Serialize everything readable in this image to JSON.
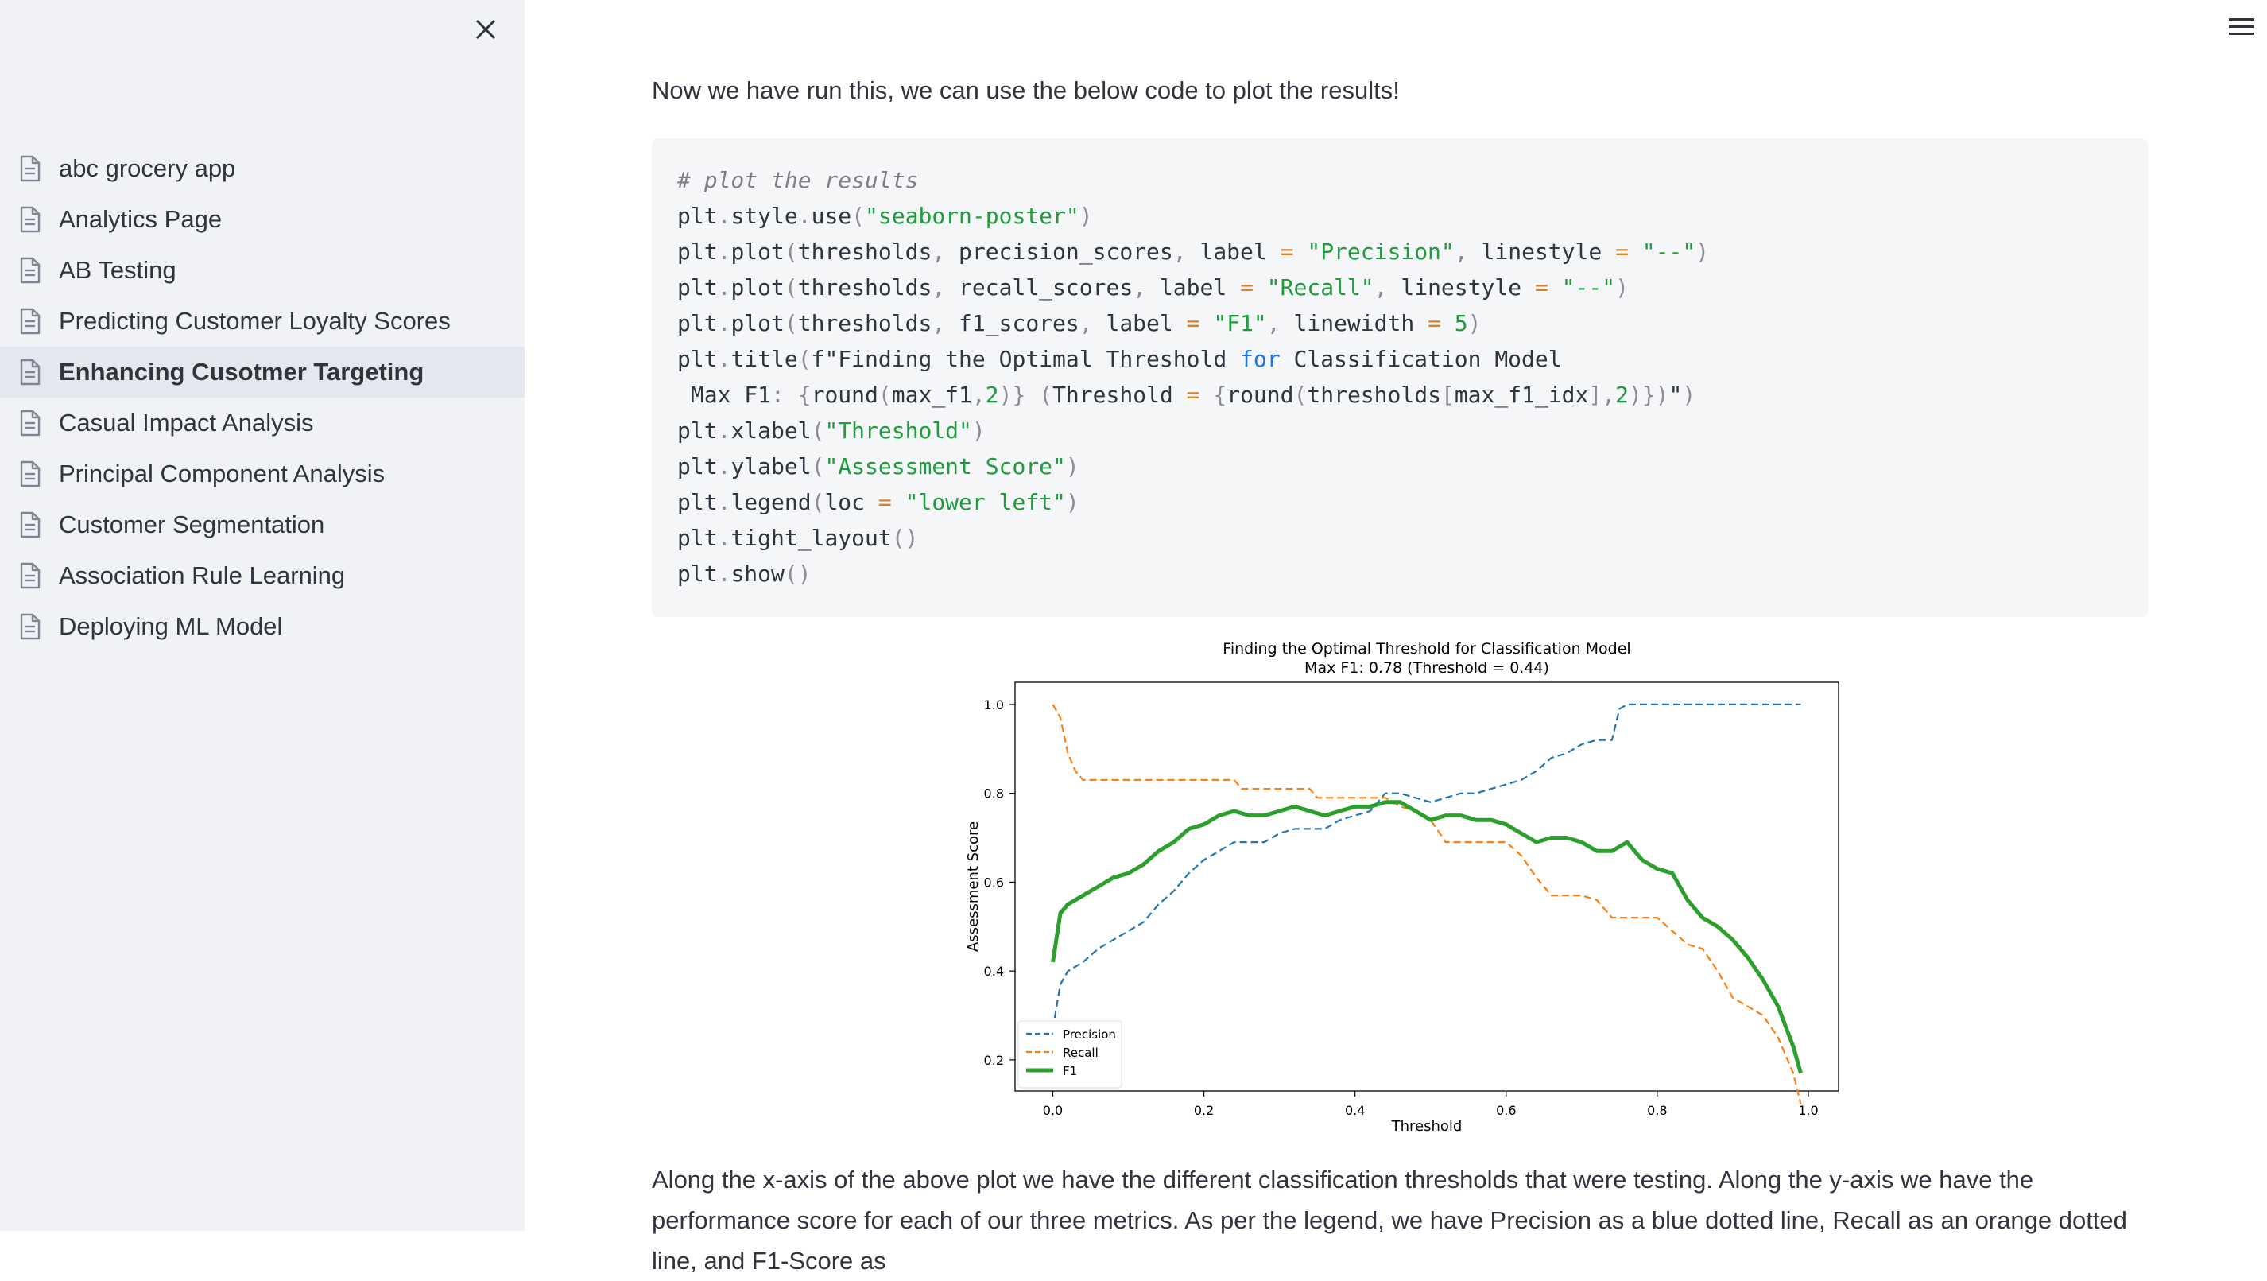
{
  "sidebar": {
    "close_icon": "close-icon",
    "items": [
      {
        "label": "abc grocery app",
        "icon": "document-icon"
      },
      {
        "label": "Analytics Page",
        "icon": "document-icon"
      },
      {
        "label": "AB Testing",
        "icon": "document-icon"
      },
      {
        "label": "Predicting Customer Loyalty Scores",
        "icon": "document-icon"
      },
      {
        "label": "Enhancing Cusotmer Targeting",
        "icon": "document-icon",
        "active": true
      },
      {
        "label": "Casual Impact Analysis",
        "icon": "document-icon"
      },
      {
        "label": "Principal Component Analysis",
        "icon": "document-icon"
      },
      {
        "label": "Customer Segmentation",
        "icon": "document-icon"
      },
      {
        "label": "Association Rule Learning",
        "icon": "document-icon"
      },
      {
        "label": "Deploying ML Model",
        "icon": "document-icon"
      }
    ]
  },
  "header": {
    "menu_icon": "hamburger-menu-icon"
  },
  "main": {
    "intro": "Now we have run this, we can use the below code to plot the results!",
    "code_lines": [
      [
        [
          "cm",
          "# plot the results"
        ]
      ],
      [
        [
          "t",
          "plt"
        ],
        [
          "p",
          "."
        ],
        [
          "t",
          "style"
        ],
        [
          "p",
          "."
        ],
        [
          "t",
          "use"
        ],
        [
          "p",
          "("
        ],
        [
          "str",
          "\"seaborn-poster\""
        ],
        [
          "p",
          ")"
        ]
      ],
      [
        [
          "t",
          "plt"
        ],
        [
          "p",
          "."
        ],
        [
          "t",
          "plot"
        ],
        [
          "p",
          "("
        ],
        [
          "t",
          "thresholds"
        ],
        [
          "p",
          ","
        ],
        [
          "t",
          " precision_scores"
        ],
        [
          "p",
          ","
        ],
        [
          "t",
          " label "
        ],
        [
          "op",
          "="
        ],
        [
          "t",
          " "
        ],
        [
          "str",
          "\"Precision\""
        ],
        [
          "p",
          ","
        ],
        [
          "t",
          " linestyle "
        ],
        [
          "op",
          "="
        ],
        [
          "t",
          " "
        ],
        [
          "str",
          "\"--\""
        ],
        [
          "p",
          ")"
        ]
      ],
      [
        [
          "t",
          "plt"
        ],
        [
          "p",
          "."
        ],
        [
          "t",
          "plot"
        ],
        [
          "p",
          "("
        ],
        [
          "t",
          "thresholds"
        ],
        [
          "p",
          ","
        ],
        [
          "t",
          " recall_scores"
        ],
        [
          "p",
          ","
        ],
        [
          "t",
          " label "
        ],
        [
          "op",
          "="
        ],
        [
          "t",
          " "
        ],
        [
          "str",
          "\"Recall\""
        ],
        [
          "p",
          ","
        ],
        [
          "t",
          " linestyle "
        ],
        [
          "op",
          "="
        ],
        [
          "t",
          " "
        ],
        [
          "str",
          "\"--\""
        ],
        [
          "p",
          ")"
        ]
      ],
      [
        [
          "t",
          "plt"
        ],
        [
          "p",
          "."
        ],
        [
          "t",
          "plot"
        ],
        [
          "p",
          "("
        ],
        [
          "t",
          "thresholds"
        ],
        [
          "p",
          ","
        ],
        [
          "t",
          " f1_scores"
        ],
        [
          "p",
          ","
        ],
        [
          "t",
          " label "
        ],
        [
          "op",
          "="
        ],
        [
          "t",
          " "
        ],
        [
          "str",
          "\"F1\""
        ],
        [
          "p",
          ","
        ],
        [
          "t",
          " linewidth "
        ],
        [
          "op",
          "="
        ],
        [
          "t",
          " "
        ],
        [
          "num",
          "5"
        ],
        [
          "p",
          ")"
        ]
      ],
      [
        [
          "t",
          "plt"
        ],
        [
          "p",
          "."
        ],
        [
          "t",
          "title"
        ],
        [
          "p",
          "("
        ],
        [
          "t",
          "f\"Finding the Optimal Threshold "
        ],
        [
          "kw",
          "for"
        ],
        [
          "t",
          " Classification Model"
        ]
      ],
      [
        [
          "t",
          " Max F1"
        ],
        [
          "p",
          ":"
        ],
        [
          "t",
          " "
        ],
        [
          "p",
          "{"
        ],
        [
          "t",
          "round"
        ],
        [
          "p",
          "("
        ],
        [
          "t",
          "max_f1"
        ],
        [
          "p",
          ","
        ],
        [
          "num",
          "2"
        ],
        [
          "p",
          ")}"
        ],
        [
          "t",
          " "
        ],
        [
          "p",
          "("
        ],
        [
          "t",
          "Threshold "
        ],
        [
          "op",
          "="
        ],
        [
          "t",
          " "
        ],
        [
          "p",
          "{"
        ],
        [
          "t",
          "round"
        ],
        [
          "p",
          "("
        ],
        [
          "t",
          "thresholds"
        ],
        [
          "p",
          "["
        ],
        [
          "t",
          "max_f1_idx"
        ],
        [
          "p",
          "],"
        ],
        [
          "num",
          "2"
        ],
        [
          "p",
          ")})"
        ],
        [
          "t",
          "\""
        ],
        [
          "p",
          ")"
        ]
      ],
      [
        [
          "t",
          "plt"
        ],
        [
          "p",
          "."
        ],
        [
          "t",
          "xlabel"
        ],
        [
          "p",
          "("
        ],
        [
          "str",
          "\"Threshold\""
        ],
        [
          "p",
          ")"
        ]
      ],
      [
        [
          "t",
          "plt"
        ],
        [
          "p",
          "."
        ],
        [
          "t",
          "ylabel"
        ],
        [
          "p",
          "("
        ],
        [
          "str",
          "\"Assessment Score\""
        ],
        [
          "p",
          ")"
        ]
      ],
      [
        [
          "t",
          "plt"
        ],
        [
          "p",
          "."
        ],
        [
          "t",
          "legend"
        ],
        [
          "p",
          "("
        ],
        [
          "t",
          "loc "
        ],
        [
          "op",
          "="
        ],
        [
          "t",
          " "
        ],
        [
          "str",
          "\"lower left\""
        ],
        [
          "p",
          ")"
        ]
      ],
      [
        [
          "t",
          "plt"
        ],
        [
          "p",
          "."
        ],
        [
          "t",
          "tight_layout"
        ],
        [
          "p",
          "()"
        ]
      ],
      [
        [
          "t",
          "plt"
        ],
        [
          "p",
          "."
        ],
        [
          "t",
          "show"
        ],
        [
          "p",
          "()"
        ]
      ]
    ],
    "explanation": "Along the x-axis of the above plot we have the different classification thresholds that were testing. Along the y-axis we have the performance score for each of our three metrics. As per the legend, we have Precision as a blue dotted line, Recall as an orange dotted line, and F1-Score as"
  },
  "chart_data": {
    "type": "line",
    "title": "Finding the Optimal Threshold for Classification Model",
    "subtitle": "Max F1: 0.78 (Threshold = 0.44)",
    "xlabel": "Threshold",
    "ylabel": "Assessment Score",
    "xlim": [
      -0.05,
      1.04
    ],
    "ylim": [
      0.13,
      1.05
    ],
    "xticks": [
      0.0,
      0.2,
      0.4,
      0.6,
      0.8,
      1.0
    ],
    "xtick_labels": [
      "0.0",
      "0.2",
      "0.4",
      "0.6",
      "0.8",
      "1.0"
    ],
    "yticks": [
      0.2,
      0.4,
      0.6,
      0.8,
      1.0
    ],
    "ytick_labels": [
      "0.2",
      "0.4",
      "0.6",
      "0.8",
      "1.0"
    ],
    "legend_position": "lower-left",
    "grid": false,
    "series": [
      {
        "name": "Precision",
        "color": "#1f77b4",
        "style": "dashed",
        "width": 2.2,
        "x": [
          0.0,
          0.01,
          0.02,
          0.04,
          0.06,
          0.08,
          0.1,
          0.12,
          0.14,
          0.16,
          0.18,
          0.2,
          0.22,
          0.24,
          0.26,
          0.28,
          0.3,
          0.32,
          0.34,
          0.36,
          0.38,
          0.4,
          0.42,
          0.44,
          0.46,
          0.48,
          0.5,
          0.52,
          0.54,
          0.56,
          0.58,
          0.6,
          0.62,
          0.64,
          0.66,
          0.68,
          0.7,
          0.72,
          0.74,
          0.75,
          0.76,
          0.8,
          0.85,
          0.9,
          0.95,
          0.99
        ],
        "y": [
          0.27,
          0.37,
          0.4,
          0.42,
          0.45,
          0.47,
          0.49,
          0.51,
          0.55,
          0.58,
          0.62,
          0.65,
          0.67,
          0.69,
          0.69,
          0.69,
          0.71,
          0.72,
          0.72,
          0.72,
          0.74,
          0.75,
          0.76,
          0.8,
          0.8,
          0.79,
          0.78,
          0.79,
          0.8,
          0.8,
          0.81,
          0.82,
          0.83,
          0.85,
          0.88,
          0.89,
          0.91,
          0.92,
          0.92,
          0.99,
          1.0,
          1.0,
          1.0,
          1.0,
          1.0,
          1.0
        ]
      },
      {
        "name": "Recall",
        "color": "#ff7f0e",
        "style": "dashed",
        "width": 2.2,
        "x": [
          0.0,
          0.01,
          0.02,
          0.03,
          0.04,
          0.06,
          0.1,
          0.15,
          0.2,
          0.24,
          0.25,
          0.3,
          0.34,
          0.35,
          0.4,
          0.44,
          0.46,
          0.48,
          0.5,
          0.52,
          0.6,
          0.62,
          0.64,
          0.66,
          0.7,
          0.72,
          0.74,
          0.76,
          0.8,
          0.82,
          0.84,
          0.86,
          0.88,
          0.9,
          0.92,
          0.94,
          0.96,
          0.98,
          0.99
        ],
        "y": [
          1.0,
          0.97,
          0.89,
          0.85,
          0.83,
          0.83,
          0.83,
          0.83,
          0.83,
          0.83,
          0.81,
          0.81,
          0.81,
          0.79,
          0.79,
          0.79,
          0.77,
          0.76,
          0.74,
          0.69,
          0.69,
          0.66,
          0.61,
          0.57,
          0.57,
          0.56,
          0.52,
          0.52,
          0.52,
          0.49,
          0.46,
          0.45,
          0.4,
          0.34,
          0.32,
          0.3,
          0.25,
          0.17,
          0.1
        ]
      },
      {
        "name": "F1",
        "color": "#2ca02c",
        "style": "solid",
        "width": 5,
        "x": [
          0.0,
          0.01,
          0.02,
          0.04,
          0.06,
          0.08,
          0.1,
          0.12,
          0.14,
          0.16,
          0.18,
          0.2,
          0.22,
          0.24,
          0.26,
          0.28,
          0.3,
          0.32,
          0.34,
          0.36,
          0.38,
          0.4,
          0.42,
          0.44,
          0.46,
          0.48,
          0.5,
          0.52,
          0.54,
          0.56,
          0.58,
          0.6,
          0.62,
          0.64,
          0.66,
          0.68,
          0.7,
          0.72,
          0.74,
          0.76,
          0.78,
          0.8,
          0.82,
          0.84,
          0.86,
          0.88,
          0.9,
          0.92,
          0.94,
          0.96,
          0.98,
          0.99
        ],
        "y": [
          0.42,
          0.53,
          0.55,
          0.57,
          0.59,
          0.61,
          0.62,
          0.64,
          0.67,
          0.69,
          0.72,
          0.73,
          0.75,
          0.76,
          0.75,
          0.75,
          0.76,
          0.77,
          0.76,
          0.75,
          0.76,
          0.77,
          0.77,
          0.78,
          0.78,
          0.76,
          0.74,
          0.75,
          0.75,
          0.74,
          0.74,
          0.73,
          0.71,
          0.69,
          0.7,
          0.7,
          0.69,
          0.67,
          0.67,
          0.69,
          0.65,
          0.63,
          0.62,
          0.56,
          0.52,
          0.5,
          0.47,
          0.43,
          0.38,
          0.32,
          0.23,
          0.17
        ]
      }
    ]
  }
}
